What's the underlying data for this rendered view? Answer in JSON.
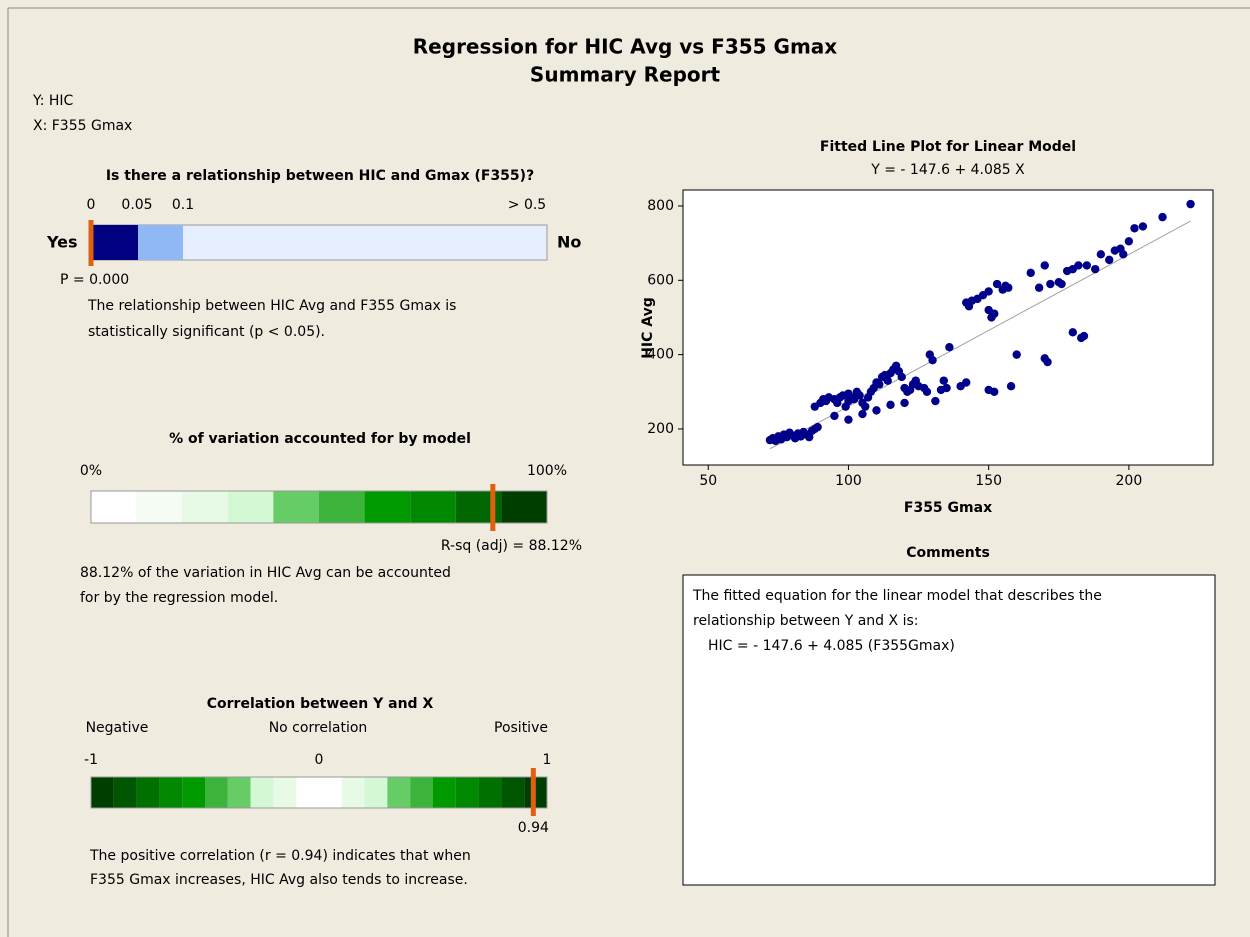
{
  "title": "Regression for HIC Avg vs F355 Gmax",
  "subtitle": "Summary Report",
  "y_info": "Y: HIC",
  "x_info": "X: F355 Gmax",
  "relationship": {
    "heading": "Is there a relationship between HIC and Gmax (F355)?",
    "left_label": "Yes",
    "right_label": "No",
    "ticks": [
      0,
      0.05,
      0.1,
      {
        "value": 0.5,
        "label": "> 0.5"
      }
    ],
    "p": 0,
    "p_label": "P = 0.000",
    "text": [
      "The relationship between HIC Avg and F355 Gmax is",
      "statistically significant (p < 0.05)."
    ]
  },
  "variation": {
    "heading": "% of variation accounted for by model",
    "ticks": [
      {
        "value": 0,
        "label": "0%"
      },
      {
        "value": 100,
        "label": "100%"
      }
    ],
    "value": 88.12,
    "value_label": "R-sq (adj) = 88.12%",
    "text": [
      "88.12% of the variation in HIC Avg can be accounted",
      "for by the regression model."
    ]
  },
  "correlation": {
    "heading": "Correlation between Y and X",
    "scale_labels": [
      "Negative",
      "No correlation",
      "Positive"
    ],
    "ticks": [
      -1,
      0,
      1
    ],
    "value": 0.94,
    "text": [
      "The positive correlation (r = 0.94) indicates that when",
      "F355 Gmax increases, HIC Avg also tends to increase."
    ]
  },
  "chart_data": {
    "type": "scatter",
    "title": "Fitted Line Plot for Linear Model",
    "subtitle": "Y =  - 147.6 + 4.085 X",
    "x_label": "F355 Gmax",
    "y_label": "HIC Avg",
    "color": "#00008b",
    "line_color": "#a0a0a0",
    "fit": {
      "intercept": -147.6,
      "slope": 4.085
    },
    "xlim": [
      41,
      230
    ],
    "ylim": [
      103,
      843
    ],
    "xticks": [
      50,
      100,
      150,
      200
    ],
    "yticks": [
      200,
      400,
      600,
      800
    ],
    "x": [
      72,
      73,
      74,
      75,
      76,
      77,
      78,
      79,
      80,
      81,
      82,
      83,
      84,
      85,
      86,
      87,
      88,
      89,
      88,
      90,
      91,
      92,
      93,
      95,
      96,
      97,
      98,
      99,
      100,
      100,
      101,
      102,
      103,
      104,
      105,
      106,
      107,
      108,
      109,
      110,
      111,
      112,
      113,
      114,
      115,
      116,
      117,
      118,
      119,
      120,
      121,
      122,
      123,
      124,
      125,
      127,
      128,
      129,
      130,
      131,
      133,
      134,
      136,
      140,
      142,
      143,
      144,
      146,
      148,
      150,
      150,
      151,
      152,
      153,
      155,
      156,
      157,
      160,
      165,
      168,
      170,
      170,
      171,
      172,
      175,
      176,
      178,
      180,
      180,
      182,
      183,
      184,
      185,
      188,
      190,
      193,
      195,
      197,
      198,
      200,
      202,
      205,
      212,
      222,
      100,
      110,
      115,
      120,
      95,
      105,
      135,
      142,
      152,
      158,
      150
    ],
    "y": [
      170,
      175,
      168,
      180,
      172,
      185,
      178,
      190,
      182,
      175,
      188,
      180,
      192,
      185,
      178,
      195,
      200,
      205,
      260,
      270,
      280,
      275,
      285,
      280,
      270,
      285,
      290,
      260,
      275,
      295,
      285,
      280,
      300,
      290,
      270,
      260,
      285,
      300,
      310,
      325,
      320,
      340,
      345,
      330,
      350,
      360,
      370,
      355,
      340,
      310,
      300,
      305,
      320,
      330,
      315,
      310,
      300,
      400,
      385,
      275,
      305,
      330,
      420,
      315,
      540,
      530,
      545,
      550,
      560,
      570,
      520,
      500,
      510,
      590,
      575,
      585,
      580,
      400,
      620,
      580,
      640,
      390,
      380,
      590,
      595,
      590,
      625,
      630,
      460,
      640,
      445,
      450,
      640,
      630,
      670,
      655,
      680,
      685,
      670,
      705,
      740,
      745,
      770,
      805,
      225,
      250,
      265,
      270,
      235,
      240,
      310,
      325,
      300,
      315,
      305
    ]
  },
  "comments": {
    "heading": "Comments",
    "lines": [
      "The fitted equation for the linear model that describes the",
      "relationship between Y and X is:",
      "HIC =  - 147.6 + 4.085 (F355Gmax)"
    ]
  }
}
